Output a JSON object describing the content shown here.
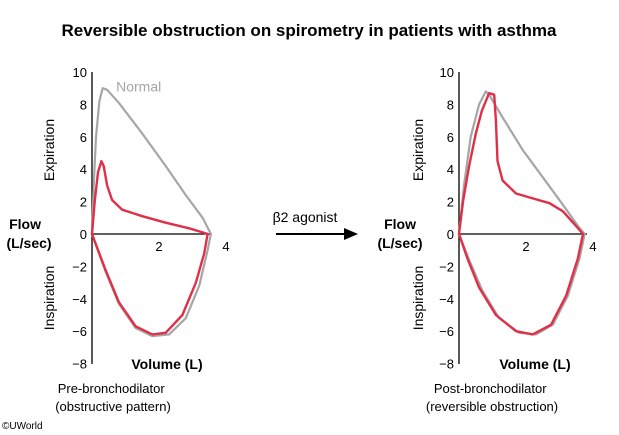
{
  "title": "Reversible obstruction on spirometry in patients with asthma",
  "arrow_label": "β2 agonist",
  "copyright": "©UWorld",
  "chart_data": [
    {
      "type": "line",
      "ylabel_lines": [
        "Flow",
        "(L/sec)"
      ],
      "xlabel": "Volume (L)",
      "expiration_label": "Expiration",
      "inspiration_label": "Inspiration",
      "caption_lines": [
        "Pre-bronchodilator",
        "(obstructive pattern)"
      ],
      "xlim": [
        0,
        4.4
      ],
      "ylim": [
        -8,
        10
      ],
      "xticks": [
        2,
        4
      ],
      "yticks": [
        10,
        8,
        6,
        4,
        2,
        0,
        -2,
        -4,
        -6,
        -8
      ],
      "ytick_labels": [
        "10",
        "8",
        "6",
        "4",
        "2",
        "0",
        "−2",
        "−4",
        "−6",
        "−8"
      ],
      "series": [
        {
          "name": "Normal",
          "color": "#a6a6a6",
          "points": [
            [
              0,
              0
            ],
            [
              0.05,
              3
            ],
            [
              0.12,
              6
            ],
            [
              0.22,
              8.2
            ],
            [
              0.32,
              9
            ],
            [
              0.45,
              8.9
            ],
            [
              0.8,
              8.1
            ],
            [
              1.5,
              6.2
            ],
            [
              2.2,
              4.2
            ],
            [
              2.8,
              2.4
            ],
            [
              3.3,
              1
            ],
            [
              3.55,
              0
            ],
            [
              3.45,
              -1
            ],
            [
              3.2,
              -3.2
            ],
            [
              2.8,
              -5.2
            ],
            [
              2.3,
              -6.2
            ],
            [
              1.8,
              -6.3
            ],
            [
              1.3,
              -5.8
            ],
            [
              0.8,
              -4.3
            ],
            [
              0.4,
              -2.3
            ],
            [
              0,
              0
            ]
          ]
        },
        {
          "color": "#e03048",
          "points": [
            [
              0,
              0
            ],
            [
              0.08,
              2
            ],
            [
              0.18,
              3.8
            ],
            [
              0.28,
              4.5
            ],
            [
              0.35,
              4.2
            ],
            [
              0.45,
              3
            ],
            [
              0.6,
              2.1
            ],
            [
              0.9,
              1.5
            ],
            [
              1.5,
              1.1
            ],
            [
              2.2,
              0.7
            ],
            [
              2.9,
              0.35
            ],
            [
              3.3,
              0.1
            ],
            [
              3.45,
              0
            ],
            [
              3.35,
              -1.2
            ],
            [
              3.1,
              -3
            ],
            [
              2.7,
              -5
            ],
            [
              2.2,
              -6.1
            ],
            [
              1.8,
              -6.2
            ],
            [
              1.3,
              -5.7
            ],
            [
              0.8,
              -4.2
            ],
            [
              0.4,
              -2.2
            ],
            [
              0,
              0
            ]
          ]
        }
      ]
    },
    {
      "type": "line",
      "ylabel_lines": [
        "Flow",
        "(L/sec)"
      ],
      "xlabel": "Volume (L)",
      "expiration_label": "Expiration",
      "inspiration_label": "Inspiration",
      "caption_lines": [
        "Post-bronchodilator",
        "(reversible obstruction)"
      ],
      "xlim": [
        0,
        4.4
      ],
      "ylim": [
        -8,
        10
      ],
      "xticks": [
        2,
        4
      ],
      "yticks": [
        10,
        8,
        6,
        4,
        2,
        0,
        -2,
        -4,
        -6,
        -8
      ],
      "ytick_labels": [
        "10",
        "8",
        "6",
        "4",
        "2",
        "0",
        "−2",
        "−4",
        "−6",
        "−8"
      ],
      "series": [
        {
          "color": "#a6a6a6",
          "points": [
            [
              0,
              0
            ],
            [
              0.15,
              3
            ],
            [
              0.35,
              6
            ],
            [
              0.6,
              8
            ],
            [
              0.8,
              8.8
            ],
            [
              0.9,
              8.6
            ],
            [
              1.3,
              7.2
            ],
            [
              1.9,
              5.2
            ],
            [
              2.5,
              3.5
            ],
            [
              3.1,
              1.8
            ],
            [
              3.55,
              0.5
            ],
            [
              3.75,
              0
            ],
            [
              3.6,
              -1.5
            ],
            [
              3.25,
              -3.8
            ],
            [
              2.8,
              -5.6
            ],
            [
              2.3,
              -6.2
            ],
            [
              1.8,
              -6.1
            ],
            [
              1.2,
              -5.2
            ],
            [
              0.7,
              -3.5
            ],
            [
              0.3,
              -1.6
            ],
            [
              0,
              0
            ]
          ]
        },
        {
          "color": "#e03048",
          "points": [
            [
              0,
              0
            ],
            [
              0.12,
              2
            ],
            [
              0.3,
              4.2
            ],
            [
              0.5,
              6.2
            ],
            [
              0.68,
              7.6
            ],
            [
              0.8,
              8.2
            ],
            [
              0.9,
              8.7
            ],
            [
              1.05,
              8.6
            ],
            [
              1.1,
              7
            ],
            [
              1.15,
              4.5
            ],
            [
              1.3,
              3.3
            ],
            [
              1.7,
              2.5
            ],
            [
              2.2,
              2.2
            ],
            [
              2.7,
              1.9
            ],
            [
              3.1,
              1.4
            ],
            [
              3.45,
              0.6
            ],
            [
              3.7,
              0
            ],
            [
              3.55,
              -1.5
            ],
            [
              3.2,
              -3.8
            ],
            [
              2.75,
              -5.6
            ],
            [
              2.2,
              -6.2
            ],
            [
              1.7,
              -6
            ],
            [
              1.1,
              -5
            ],
            [
              0.6,
              -3.3
            ],
            [
              0.25,
              -1.5
            ],
            [
              0,
              0
            ]
          ]
        }
      ]
    }
  ]
}
